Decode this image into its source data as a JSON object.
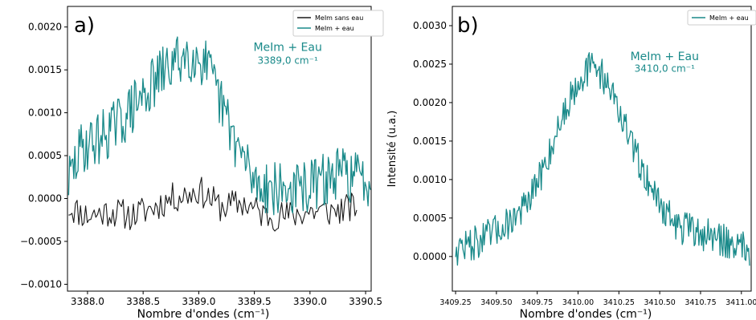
{
  "chart_data": [
    {
      "type": "line",
      "panel_label": "a)",
      "xlabel": "Nombre d'ondes (cm⁻¹)",
      "ylabel": "",
      "xlim": [
        3387.82,
        3390.55
      ],
      "ylim": [
        -0.00108,
        0.00224
      ],
      "xticks": [
        3388.0,
        3388.5,
        3389.0,
        3389.5,
        3390.0,
        3390.5
      ],
      "xtick_labels": [
        "3388.0",
        "3388.5",
        "3389.0",
        "3389.5",
        "3390.0",
        "3390.5"
      ],
      "yticks": [
        -0.001,
        -0.0005,
        0.0,
        0.0005,
        0.001,
        0.0015,
        0.002
      ],
      "ytick_labels": [
        "−0.0010",
        "−0.0005",
        "0.0000",
        "0.0005",
        "0.0010",
        "0.0015",
        "0.0020"
      ],
      "legend_position": "top-right",
      "series": [
        {
          "name": "MeIm sans eau",
          "color": "#1a1a1a",
          "x_range": [
            3387.83,
            3390.42
          ],
          "profile_x": [
            3387.83,
            3388.0,
            3388.2,
            3388.4,
            3388.6,
            3388.75,
            3388.9,
            3389.0,
            3389.2,
            3389.4,
            3389.6,
            3389.8,
            3390.0,
            3390.2,
            3390.42
          ],
          "profile_y": [
            -0.0001,
            -0.0002,
            -0.00015,
            -0.0002,
            -0.0001,
            0.0,
            5e-05,
            0.0001,
            -0.0001,
            -5e-05,
            -0.0002,
            -0.0002,
            -0.00015,
            -0.00015,
            -0.0001
          ],
          "noise_amplitude": 0.00018
        },
        {
          "name": "MeIm + eau",
          "color": "#1a8a8a",
          "x_range": [
            3387.83,
            3390.55
          ],
          "profile_x": [
            3387.83,
            3387.95,
            3388.1,
            3388.3,
            3388.5,
            3388.7,
            3388.9,
            3389.05,
            3389.2,
            3389.35,
            3389.5,
            3389.7,
            3389.9,
            3390.1,
            3390.3,
            3390.55
          ],
          "profile_y": [
            0.0002,
            0.0006,
            0.0007,
            0.0009,
            0.0012,
            0.0015,
            0.0017,
            0.0016,
            0.0011,
            0.0006,
            0.0002,
            0.0001,
            0.0001,
            0.0002,
            0.0003,
            0.0002
          ],
          "noise_amplitude": 0.00032
        }
      ],
      "annotations": [
        {
          "text": "MeIm + Eau",
          "x": 3389.8,
          "y": 0.00172,
          "color": "#1a8a8a"
        },
        {
          "text": "3389,0 cm⁻¹",
          "x": 3389.8,
          "y": 0.00157,
          "color": "#1a8a8a"
        }
      ]
    },
    {
      "type": "line",
      "panel_label": "b)",
      "xlabel": "Nombre d'ondes (cm⁻¹)",
      "ylabel": "Intensité (u.a.)",
      "xlim": [
        3409.23,
        3411.06
      ],
      "ylim": [
        -0.00045,
        0.00325
      ],
      "xticks": [
        3409.25,
        3409.5,
        3409.75,
        3410.0,
        3410.25,
        3410.5,
        3410.75,
        3411.0
      ],
      "xtick_labels": [
        "3409.25",
        "3409.50",
        "3409.75",
        "3410.00",
        "3410.25",
        "3410.50",
        "3410.75",
        "3411.00"
      ],
      "yticks": [
        0.0,
        0.0005,
        0.001,
        0.0015,
        0.002,
        0.0025,
        0.003
      ],
      "ytick_labels": [
        "0.0000",
        "0.0005",
        "0.0010",
        "0.0015",
        "0.0020",
        "0.0025",
        "0.0030"
      ],
      "legend_position": "top-right",
      "series": [
        {
          "name": "MeIm + eau",
          "color": "#1a8a8a",
          "x_range": [
            3409.25,
            3411.05
          ],
          "profile_x": [
            3409.25,
            3409.4,
            3409.55,
            3409.7,
            3409.8,
            3409.9,
            3410.0,
            3410.1,
            3410.2,
            3410.3,
            3410.4,
            3410.5,
            3410.6,
            3410.75,
            3410.9,
            3411.05
          ],
          "profile_y": [
            0.0001,
            0.0002,
            0.0004,
            0.0007,
            0.0012,
            0.0018,
            0.0023,
            0.0025,
            0.0022,
            0.0016,
            0.0011,
            0.0007,
            0.0004,
            0.0003,
            0.0002,
            0.0001
          ],
          "noise_amplitude": 0.00022
        }
      ],
      "annotations": [
        {
          "text": "MeIm + Eau",
          "x": 3410.53,
          "y": 0.00255,
          "color": "#1a8a8a"
        },
        {
          "text": "3410,0 cm⁻¹",
          "x": 3410.53,
          "y": 0.0024,
          "color": "#1a8a8a"
        }
      ]
    }
  ]
}
